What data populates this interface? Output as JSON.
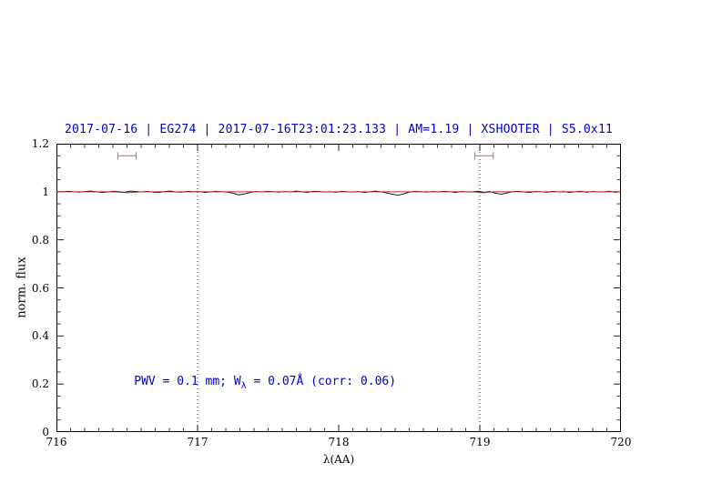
{
  "chart_data": {
    "type": "line",
    "title": "2017-07-16 | EG274 | 2017-07-16T23:01:23.133 | AM=1.19 | XSHOOTER | S5.0x11",
    "title_color": "#0000cc",
    "xlabel": "λ(AA)",
    "ylabel": "norm. flux",
    "xlim": [
      716,
      720
    ],
    "ylim": [
      0,
      1.2
    ],
    "x_ticks": [
      {
        "v": 716,
        "label": "716"
      },
      {
        "v": 717,
        "label": "717"
      },
      {
        "v": 718,
        "label": "718"
      },
      {
        "v": 719,
        "label": "719"
      },
      {
        "v": 720,
        "label": "720"
      }
    ],
    "y_ticks": [
      {
        "v": 0,
        "label": "0"
      },
      {
        "v": 0.2,
        "label": "0.2"
      },
      {
        "v": 0.4,
        "label": "0.4"
      },
      {
        "v": 0.6,
        "label": "0.6"
      },
      {
        "v": 0.8,
        "label": "0.8"
      },
      {
        "v": 1,
        "label": "1"
      },
      {
        "v": 1.2,
        "label": "1.2"
      }
    ],
    "x_minor_step": 0.1,
    "y_minor_step": 0.05,
    "grid": false,
    "legend": null,
    "vlines": {
      "values": [
        717,
        719
      ],
      "style": "dotted",
      "color": "#000000"
    },
    "series": [
      {
        "name": "observed-spectrum",
        "color": "#000000",
        "width": 0.9,
        "x_start": 716,
        "x_step": 0.040404,
        "y": [
          1.001,
          0.999,
          1.002,
          1.0,
          0.998,
          1.001,
          1.003,
          1.0,
          0.997,
          0.999,
          1.002,
          1.0,
          0.998,
          1.003,
          1.001,
          0.999,
          1.002,
          0.998,
          0.997,
          1.001,
          1.003,
          0.999,
          0.998,
          1.002,
          1.0,
          1.001,
          0.997,
          0.999,
          1.002,
          1.0,
          0.998,
          0.994,
          0.987,
          0.991,
          0.997,
          1.001,
          0.999,
          1.002,
          1.0,
          0.998,
          1.001,
          0.999,
          1.003,
          1.0,
          0.997,
          1.002,
          1.001,
          0.999,
          1.0,
          0.998,
          1.002,
          1.0,
          0.999,
          1.001,
          0.997,
          1.0,
          1.003,
          0.999,
          0.995,
          0.989,
          0.986,
          0.992,
          0.999,
          1.002,
          1.0,
          0.998,
          1.001,
          0.999,
          1.002,
          1.0,
          0.997,
          1.001,
          0.999,
          1.0,
          1.002,
          0.998,
          1.001,
          0.994,
          0.99,
          0.995,
          1.0,
          1.002,
          0.999,
          0.997,
          1.001,
          1.0,
          0.998,
          1.002,
          0.999,
          1.001,
          0.997,
          1.0,
          1.002,
          0.998,
          1.001,
          0.999,
          1.0,
          1.002,
          0.998,
          1.0
        ]
      },
      {
        "name": "telluric-model",
        "color": "#cc2222",
        "width": 1,
        "x": [
          716,
          716.4,
          716.5,
          716.6,
          718.95,
          719.02,
          719.1,
          720
        ],
        "y": [
          1.0,
          1.0,
          0.996,
          1.0,
          1.0,
          0.996,
          1.0,
          1.0
        ]
      }
    ],
    "markers": [
      {
        "x": 716.5,
        "y": 1.15,
        "halfwidth": 0.065,
        "cap": 0.015,
        "color": "#cc6666"
      },
      {
        "x": 719.03,
        "y": 1.15,
        "halfwidth": 0.065,
        "cap": 0.015,
        "color": "#cc6666"
      }
    ],
    "annotation": {
      "pre": "PWV = 0.1 mm; W",
      "sub": "λ",
      "post": " = 0.07Å (corr: 0.06)",
      "x": 716.55,
      "y": 0.205,
      "color": "#0000cc"
    }
  }
}
